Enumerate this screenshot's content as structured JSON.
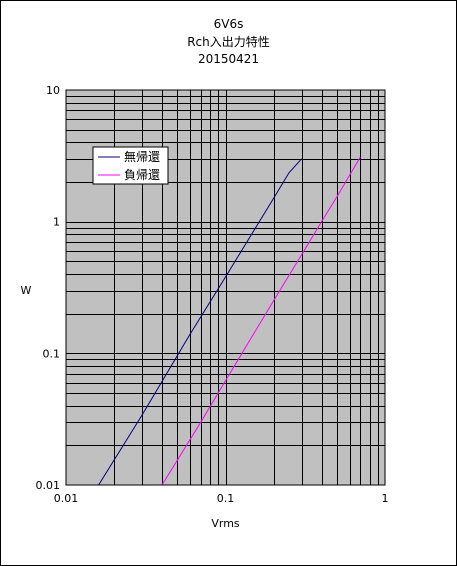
{
  "chart_data": {
    "type": "line",
    "title": [
      "6V6s",
      "Rch入出力特性",
      "20150421"
    ],
    "xlabel": "Vrms",
    "ylabel": "W",
    "xscale": "log",
    "yscale": "log",
    "xlim": [
      0.01,
      1
    ],
    "ylim": [
      0.01,
      10
    ],
    "xticks": [
      "0.01",
      "0.1",
      "1"
    ],
    "yticks": [
      "0.01",
      "0.1",
      "1",
      "10"
    ],
    "grid": true,
    "legend": "top-left",
    "series": [
      {
        "name": "無帰還",
        "color": "#000080",
        "x": [
          0.016,
          0.03,
          0.06,
          0.1,
          0.15,
          0.2,
          0.25,
          0.3
        ],
        "y": [
          0.01,
          0.034,
          0.14,
          0.38,
          0.85,
          1.5,
          2.35,
          3.0
        ]
      },
      {
        "name": "負帰還",
        "color": "#FF00FF",
        "x": [
          0.04,
          0.07,
          0.1,
          0.2,
          0.3,
          0.4,
          0.5,
          0.6,
          0.7
        ],
        "y": [
          0.01,
          0.03,
          0.062,
          0.25,
          0.56,
          1.0,
          1.55,
          2.25,
          3.1
        ]
      }
    ]
  }
}
